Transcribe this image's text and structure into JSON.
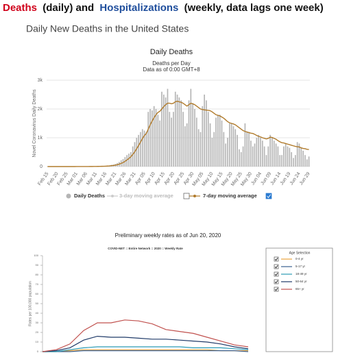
{
  "header": {
    "parts": [
      {
        "text": "Deaths",
        "color": "#d0021b"
      },
      {
        "text": "(daily) and",
        "color": "#111111"
      },
      {
        "text": "Hospitalizations",
        "color": "#1f4e9c"
      },
      {
        "text": "(weekly, data lags one week)",
        "color": "#111111"
      }
    ]
  },
  "section_title": "Daily New Deaths in the United States",
  "chart_data": [
    {
      "type": "bar",
      "title": "Daily Deaths",
      "subtitle": "Deaths per Day",
      "note": "Data as of 0:00 GMT+8",
      "y_label": "Novel Coronavirus Daily Deaths",
      "ylim": [
        0,
        3000
      ],
      "yticks": [
        0,
        {
          "value": 1000,
          "label": "1k"
        },
        {
          "value": 2000,
          "label": "2k"
        },
        {
          "value": 3000,
          "label": "3k"
        }
      ],
      "grid": true,
      "categories": [
        "Feb 15",
        null,
        null,
        null,
        null,
        "Feb 20",
        null,
        null,
        null,
        null,
        "Feb 25",
        null,
        null,
        null,
        null,
        "Mar 01",
        null,
        null,
        null,
        null,
        "Mar 06",
        null,
        null,
        null,
        null,
        "Mar 11",
        null,
        null,
        null,
        null,
        "Mar 16",
        null,
        null,
        null,
        null,
        "Mar 21",
        null,
        null,
        null,
        null,
        "Mar 26",
        null,
        null,
        null,
        null,
        "Mar 31",
        null,
        null,
        null,
        null,
        "Apr 05",
        null,
        null,
        null,
        null,
        "Apr 10",
        null,
        null,
        null,
        null,
        "Apr 15",
        null,
        null,
        null,
        null,
        "Apr 20",
        null,
        null,
        null,
        null,
        "Apr 25",
        null,
        null,
        null,
        null,
        "Apr 30",
        null,
        null,
        null,
        null,
        "May 05",
        null,
        null,
        null,
        null,
        "May 10",
        null,
        null,
        null,
        null,
        "May 15",
        null,
        null,
        null,
        null,
        "May 20",
        null,
        null,
        null,
        null,
        "May 25",
        null,
        null,
        null,
        null,
        "May 30",
        null,
        null,
        null,
        null,
        "Jun 04",
        null,
        null,
        null,
        null,
        "Jun 09",
        null,
        null,
        null,
        null,
        "Jun 14",
        null,
        null,
        null,
        null,
        "Jun 19",
        null,
        null,
        null,
        null,
        "Jun 24",
        null,
        null,
        null,
        null,
        "Jun 29"
      ],
      "series": [
        {
          "name": "Daily Deaths",
          "type": "bar",
          "color": "#b5b5b5",
          "values": [
            0,
            0,
            0,
            0,
            0,
            0,
            0,
            0,
            0,
            0,
            0,
            0,
            0,
            0,
            0,
            1,
            1,
            2,
            2,
            1,
            3,
            4,
            3,
            5,
            8,
            10,
            10,
            12,
            15,
            20,
            25,
            30,
            40,
            60,
            70,
            90,
            120,
            160,
            220,
            260,
            330,
            400,
            450,
            500,
            700,
            850,
            1000,
            1100,
            1200,
            1300,
            1250,
            1200,
            1900,
            2000,
            1950,
            2100,
            2000,
            1800,
            1600,
            2600,
            2500,
            2400,
            2700,
            1900,
            1700,
            1900,
            2600,
            2500,
            2400,
            2300,
            1900,
            1400,
            1500,
            2300,
            2700,
            2200,
            2000,
            1700,
            1300,
            1200,
            2100,
            2500,
            2300,
            1900,
            1500,
            1000,
            1200,
            1700,
            1800,
            1800,
            1600,
            1200,
            800,
            1000,
            1500,
            1500,
            1400,
            1300,
            1100,
            600,
            500,
            700,
            1500,
            1200,
            1200,
            900,
            700,
            800,
            1000,
            1100,
            1000,
            900,
            700,
            400,
            700,
            1100,
            1000,
            900,
            800,
            700,
            400,
            400,
            700,
            800,
            700,
            650,
            500,
            300,
            400,
            850,
            800,
            650,
            550,
            400,
            250,
            350
          ]
        },
        {
          "name": "3-day moving average",
          "type": "line",
          "color": "#cccccc",
          "checked": false
        },
        {
          "name": "7-day moving average",
          "type": "line",
          "color": "#b07a2a",
          "checked": true,
          "values": [
            0,
            0,
            0,
            0,
            0,
            0,
            0,
            0,
            0,
            0,
            0,
            0,
            0,
            0,
            0,
            1,
            1,
            1,
            1,
            2,
            2,
            2,
            3,
            3,
            4,
            5,
            6,
            7,
            9,
            11,
            14,
            18,
            23,
            30,
            38,
            50,
            65,
            85,
            110,
            140,
            180,
            230,
            280,
            340,
            420,
            510,
            620,
            730,
            850,
            970,
            1080,
            1150,
            1300,
            1450,
            1580,
            1700,
            1800,
            1880,
            1920,
            2000,
            2080,
            2150,
            2200,
            2200,
            2180,
            2200,
            2250,
            2270,
            2250,
            2230,
            2200,
            2150,
            2100,
            2150,
            2200,
            2180,
            2150,
            2100,
            2050,
            2000,
            1980,
            1970,
            1960,
            1950,
            1940,
            1900,
            1850,
            1800,
            1780,
            1760,
            1720,
            1680,
            1620,
            1560,
            1520,
            1500,
            1480,
            1450,
            1400,
            1350,
            1300,
            1250,
            1220,
            1200,
            1180,
            1160,
            1150,
            1120,
            1080,
            1050,
            1030,
            1000,
            980,
            960,
            980,
            1020,
            1010,
            980,
            950,
            900,
            860,
            830,
            820,
            800,
            780,
            760,
            740,
            720,
            700,
            690,
            680,
            650,
            630,
            620,
            600,
            590
          ]
        }
      ]
    },
    {
      "type": "line",
      "title": "Preliminary weekly rates as of Jun 20, 2020",
      "subtitle": "COVID-NET :: Entire Network :: 2020 :: Weekly Rate",
      "y_label": "Rates per 100,000 population",
      "legend_title": "Age Selection",
      "ylim": [
        0,
        100
      ],
      "yticks": [
        0,
        10,
        20,
        30,
        40,
        50,
        60,
        70,
        80,
        90,
        100
      ],
      "grid": false,
      "categories": [
        null,
        null,
        null,
        null,
        null,
        null,
        null,
        null,
        null,
        null,
        null,
        null,
        null,
        null,
        null,
        null
      ],
      "series": [
        {
          "name": "0-4 yr",
          "type": "line",
          "color": "#e8a33d",
          "checked": true,
          "values": [
            0,
            0,
            1,
            2,
            2,
            2,
            2,
            2,
            2,
            2,
            2,
            2,
            2,
            1,
            1,
            1
          ]
        },
        {
          "name": "5-17 yr",
          "type": "line",
          "color": "#3a5f8f",
          "checked": true,
          "values": [
            0,
            0,
            0,
            1,
            1,
            1,
            1,
            1,
            1,
            1,
            1,
            1,
            1,
            1,
            1,
            0
          ]
        },
        {
          "name": "18-49 yr",
          "type": "line",
          "color": "#2a9bb5",
          "checked": true,
          "values": [
            0,
            0,
            2,
            4,
            5,
            5,
            5,
            5,
            5,
            5,
            5,
            4,
            4,
            4,
            3,
            2
          ]
        },
        {
          "name": "50-64 yr",
          "type": "line",
          "color": "#1f3a68",
          "checked": true,
          "values": [
            0,
            1,
            4,
            12,
            16,
            15,
            15,
            14,
            13,
            13,
            12,
            11,
            10,
            8,
            5,
            3
          ]
        },
        {
          "name": "65+ yr",
          "type": "line",
          "color": "#c0504d",
          "checked": true,
          "values": [
            0,
            2,
            8,
            22,
            30,
            30,
            33,
            32,
            29,
            23,
            21,
            19,
            15,
            11,
            7,
            5
          ]
        }
      ]
    }
  ]
}
